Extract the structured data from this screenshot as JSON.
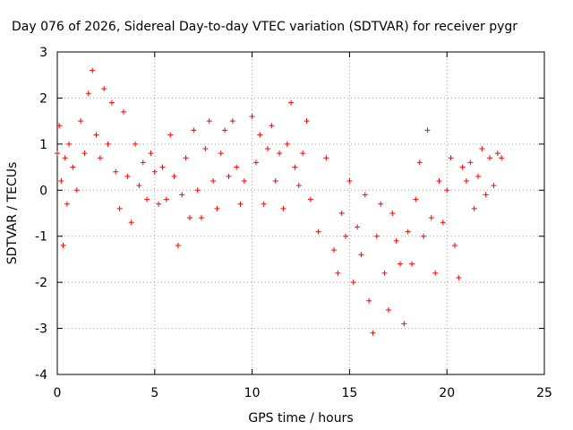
{
  "chart_data": {
    "type": "scatter",
    "title": "Day 076 of 2026, Sidereal Day-to-day VTEC variation (SDTVAR) for receiver pygr",
    "xlabel": "GPS time / hours",
    "ylabel": "SDTVAR / TECUs",
    "xlim": [
      0,
      25
    ],
    "ylim": [
      -4,
      3
    ],
    "xticks": [
      0,
      5,
      10,
      15,
      20,
      25
    ],
    "xtick_labels": [
      "0",
      "5",
      "10",
      "15",
      "20",
      "25"
    ],
    "yticks": [
      -4,
      -3,
      -2,
      -1,
      0,
      1,
      2,
      3
    ],
    "ytick_labels": [
      "-4",
      "-3",
      "-2",
      "-1",
      "0",
      "1",
      "2",
      "3"
    ],
    "grid": true,
    "marker": "+",
    "series": [
      {
        "name": "SDTVAR",
        "color": "#ff0000",
        "x": [
          0.0,
          0.1,
          0.2,
          0.3,
          0.4,
          0.5,
          0.6,
          0.8,
          1.0,
          1.2,
          1.4,
          1.6,
          1.8,
          2.0,
          2.2,
          2.4,
          2.6,
          2.8,
          3.0,
          3.2,
          3.4,
          3.6,
          3.8,
          4.0,
          4.2,
          4.4,
          4.6,
          4.8,
          5.0,
          5.2,
          5.4,
          5.6,
          5.8,
          6.0,
          6.2,
          6.4,
          6.6,
          6.8,
          7.0,
          7.2,
          7.4,
          7.6,
          7.8,
          8.0,
          8.2,
          8.4,
          8.6,
          8.8,
          9.0,
          9.2,
          9.4,
          9.6,
          10.0,
          10.2,
          10.4,
          10.6,
          10.8,
          11.0,
          11.2,
          11.4,
          11.6,
          11.8,
          12.0,
          12.2,
          12.4,
          12.6,
          12.8,
          13.0,
          13.4,
          13.8,
          14.2,
          14.4,
          14.6,
          14.8,
          15.0,
          15.2,
          15.4,
          15.6,
          15.8,
          16.0,
          16.2,
          16.4,
          16.6,
          16.8,
          17.0,
          17.2,
          17.4,
          17.6,
          17.8,
          18.0,
          18.2,
          18.4,
          18.6,
          18.8,
          19.0,
          19.2,
          19.4,
          19.6,
          19.8,
          20.0,
          20.2,
          20.4,
          20.6,
          20.8,
          21.0,
          21.2,
          21.4,
          21.6,
          21.8,
          22.0,
          22.2,
          22.4,
          22.6,
          22.8
        ],
        "y": [
          0.8,
          1.4,
          0.2,
          -1.2,
          0.7,
          -0.3,
          1.0,
          0.5,
          0.0,
          1.5,
          0.8,
          2.1,
          2.6,
          1.2,
          0.7,
          2.2,
          1.0,
          1.9,
          0.4,
          -0.4,
          1.7,
          0.3,
          -0.7,
          1.0,
          0.1,
          0.6,
          -0.2,
          0.8,
          0.4,
          -0.3,
          0.5,
          -0.2,
          1.2,
          0.3,
          -1.2,
          -0.1,
          0.7,
          -0.6,
          1.3,
          0.0,
          -0.6,
          0.9,
          1.5,
          0.2,
          -0.4,
          0.8,
          1.3,
          0.3,
          1.5,
          0.5,
          -0.3,
          0.2,
          1.6,
          0.6,
          1.2,
          -0.3,
          0.9,
          1.4,
          0.2,
          0.8,
          -0.4,
          1.0,
          1.9,
          0.5,
          0.1,
          0.8,
          1.5,
          -0.2,
          -0.9,
          0.7,
          -1.3,
          -1.8,
          -0.5,
          -1.0,
          0.2,
          -2.0,
          -0.8,
          -1.4,
          -0.1,
          -2.4,
          -3.1,
          -1.0,
          -0.3,
          -1.8,
          -2.6,
          -0.5,
          -1.1,
          -1.6,
          -2.9,
          -0.9,
          -1.6,
          -0.2,
          0.6,
          -1.0,
          1.3,
          -0.6,
          -1.8,
          0.2,
          -0.7,
          0.0,
          0.7,
          -1.2,
          -1.9,
          0.5,
          0.2,
          0.6,
          -0.4,
          0.3,
          0.9,
          -0.1,
          0.7,
          0.1,
          0.8,
          0.7
        ]
      }
    ]
  }
}
